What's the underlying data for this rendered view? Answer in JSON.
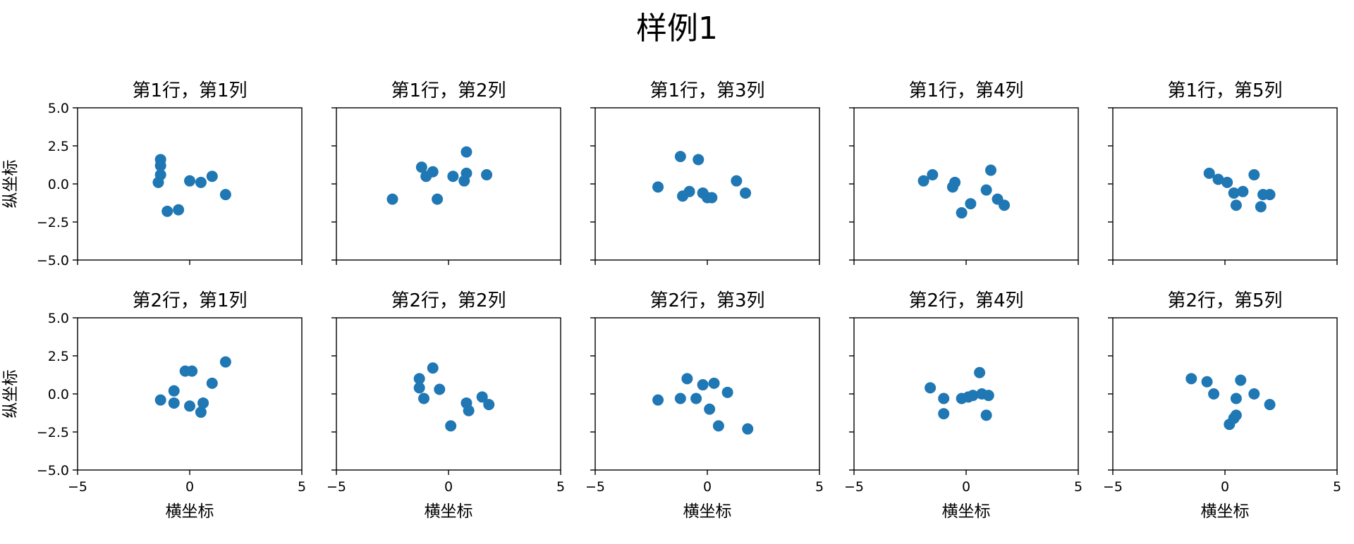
{
  "chart_data": {
    "type": "scatter",
    "title": "样例1",
    "xlabel": "横坐标",
    "ylabel": "纵坐标",
    "xlim": [
      -5,
      5
    ],
    "ylim": [
      -5,
      5
    ],
    "xticks": [
      -5,
      0,
      5
    ],
    "yticks": [
      -5.0,
      -2.5,
      0.0,
      2.5,
      5.0
    ],
    "grid": false,
    "marker_color": "#1f77b4",
    "subplots": [
      {
        "title": "第1行，第1列",
        "points": [
          [
            -1.3,
            1.6
          ],
          [
            -1.3,
            1.2
          ],
          [
            -1.3,
            0.6
          ],
          [
            -1.4,
            0.1
          ],
          [
            -1.0,
            -1.8
          ],
          [
            -0.5,
            -1.7
          ],
          [
            0.0,
            0.2
          ],
          [
            0.5,
            0.1
          ],
          [
            1.0,
            0.5
          ],
          [
            1.6,
            -0.7
          ]
        ]
      },
      {
        "title": "第1行，第2列",
        "points": [
          [
            -2.5,
            -1.0
          ],
          [
            -1.2,
            1.1
          ],
          [
            -1.0,
            0.5
          ],
          [
            -0.7,
            0.8
          ],
          [
            -0.5,
            -1.0
          ],
          [
            0.2,
            0.5
          ],
          [
            0.7,
            0.2
          ],
          [
            0.8,
            0.7
          ],
          [
            0.8,
            2.1
          ],
          [
            1.7,
            0.6
          ]
        ]
      },
      {
        "title": "第1行，第3列",
        "points": [
          [
            -2.2,
            -0.2
          ],
          [
            -1.2,
            1.8
          ],
          [
            -1.1,
            -0.8
          ],
          [
            -0.8,
            -0.5
          ],
          [
            -0.4,
            1.6
          ],
          [
            -0.2,
            -0.6
          ],
          [
            0.0,
            -0.9
          ],
          [
            0.2,
            -0.9
          ],
          [
            1.3,
            0.2
          ],
          [
            1.7,
            -0.6
          ]
        ]
      },
      {
        "title": "第1行，第4列",
        "points": [
          [
            -1.9,
            0.2
          ],
          [
            -1.5,
            0.6
          ],
          [
            -0.6,
            -0.2
          ],
          [
            -0.5,
            0.1
          ],
          [
            -0.2,
            -1.9
          ],
          [
            0.2,
            -1.3
          ],
          [
            0.9,
            -0.4
          ],
          [
            1.1,
            0.9
          ],
          [
            1.4,
            -1.0
          ],
          [
            1.7,
            -1.4
          ]
        ]
      },
      {
        "title": "第1行，第5列",
        "points": [
          [
            -0.7,
            0.7
          ],
          [
            -0.3,
            0.3
          ],
          [
            0.1,
            0.1
          ],
          [
            0.4,
            -0.6
          ],
          [
            0.5,
            -1.4
          ],
          [
            0.8,
            -0.5
          ],
          [
            1.3,
            0.6
          ],
          [
            1.6,
            -1.5
          ],
          [
            1.7,
            -0.7
          ],
          [
            2.0,
            -0.7
          ]
        ]
      },
      {
        "title": "第2行，第1列",
        "points": [
          [
            -1.3,
            -0.4
          ],
          [
            -0.7,
            0.2
          ],
          [
            -0.7,
            -0.6
          ],
          [
            -0.2,
            1.5
          ],
          [
            0.1,
            1.5
          ],
          [
            0.0,
            -0.8
          ],
          [
            0.5,
            -1.2
          ],
          [
            0.6,
            -0.6
          ],
          [
            1.0,
            0.7
          ],
          [
            1.6,
            2.1
          ]
        ]
      },
      {
        "title": "第2行，第2列",
        "points": [
          [
            -1.3,
            1.0
          ],
          [
            -1.3,
            0.4
          ],
          [
            -1.1,
            -0.3
          ],
          [
            -0.7,
            1.7
          ],
          [
            -0.4,
            0.3
          ],
          [
            0.1,
            -2.1
          ],
          [
            0.8,
            -0.6
          ],
          [
            0.9,
            -1.1
          ],
          [
            1.5,
            -0.2
          ],
          [
            1.8,
            -0.7
          ]
        ]
      },
      {
        "title": "第2行，第3列",
        "points": [
          [
            -2.2,
            -0.4
          ],
          [
            -1.2,
            -0.3
          ],
          [
            -0.9,
            1.0
          ],
          [
            -0.5,
            -0.3
          ],
          [
            -0.2,
            0.6
          ],
          [
            0.1,
            -1.0
          ],
          [
            0.3,
            0.7
          ],
          [
            0.5,
            -2.1
          ],
          [
            0.9,
            0.1
          ],
          [
            1.8,
            -2.3
          ]
        ]
      },
      {
        "title": "第2行，第4列",
        "points": [
          [
            -1.6,
            0.4
          ],
          [
            -1.0,
            -0.3
          ],
          [
            -1.0,
            -1.3
          ],
          [
            -0.2,
            -0.3
          ],
          [
            0.1,
            -0.2
          ],
          [
            0.3,
            -0.1
          ],
          [
            0.6,
            1.4
          ],
          [
            0.7,
            0.0
          ],
          [
            0.9,
            -1.4
          ],
          [
            1.0,
            -0.1
          ]
        ]
      },
      {
        "title": "第2行，第5列",
        "points": [
          [
            -1.5,
            1.0
          ],
          [
            -0.8,
            0.8
          ],
          [
            -0.5,
            0.0
          ],
          [
            0.2,
            -2.0
          ],
          [
            0.4,
            -1.6
          ],
          [
            0.5,
            -1.4
          ],
          [
            0.5,
            -0.3
          ],
          [
            0.7,
            0.9
          ],
          [
            1.3,
            0.0
          ],
          [
            2.0,
            -0.7
          ]
        ]
      }
    ]
  }
}
